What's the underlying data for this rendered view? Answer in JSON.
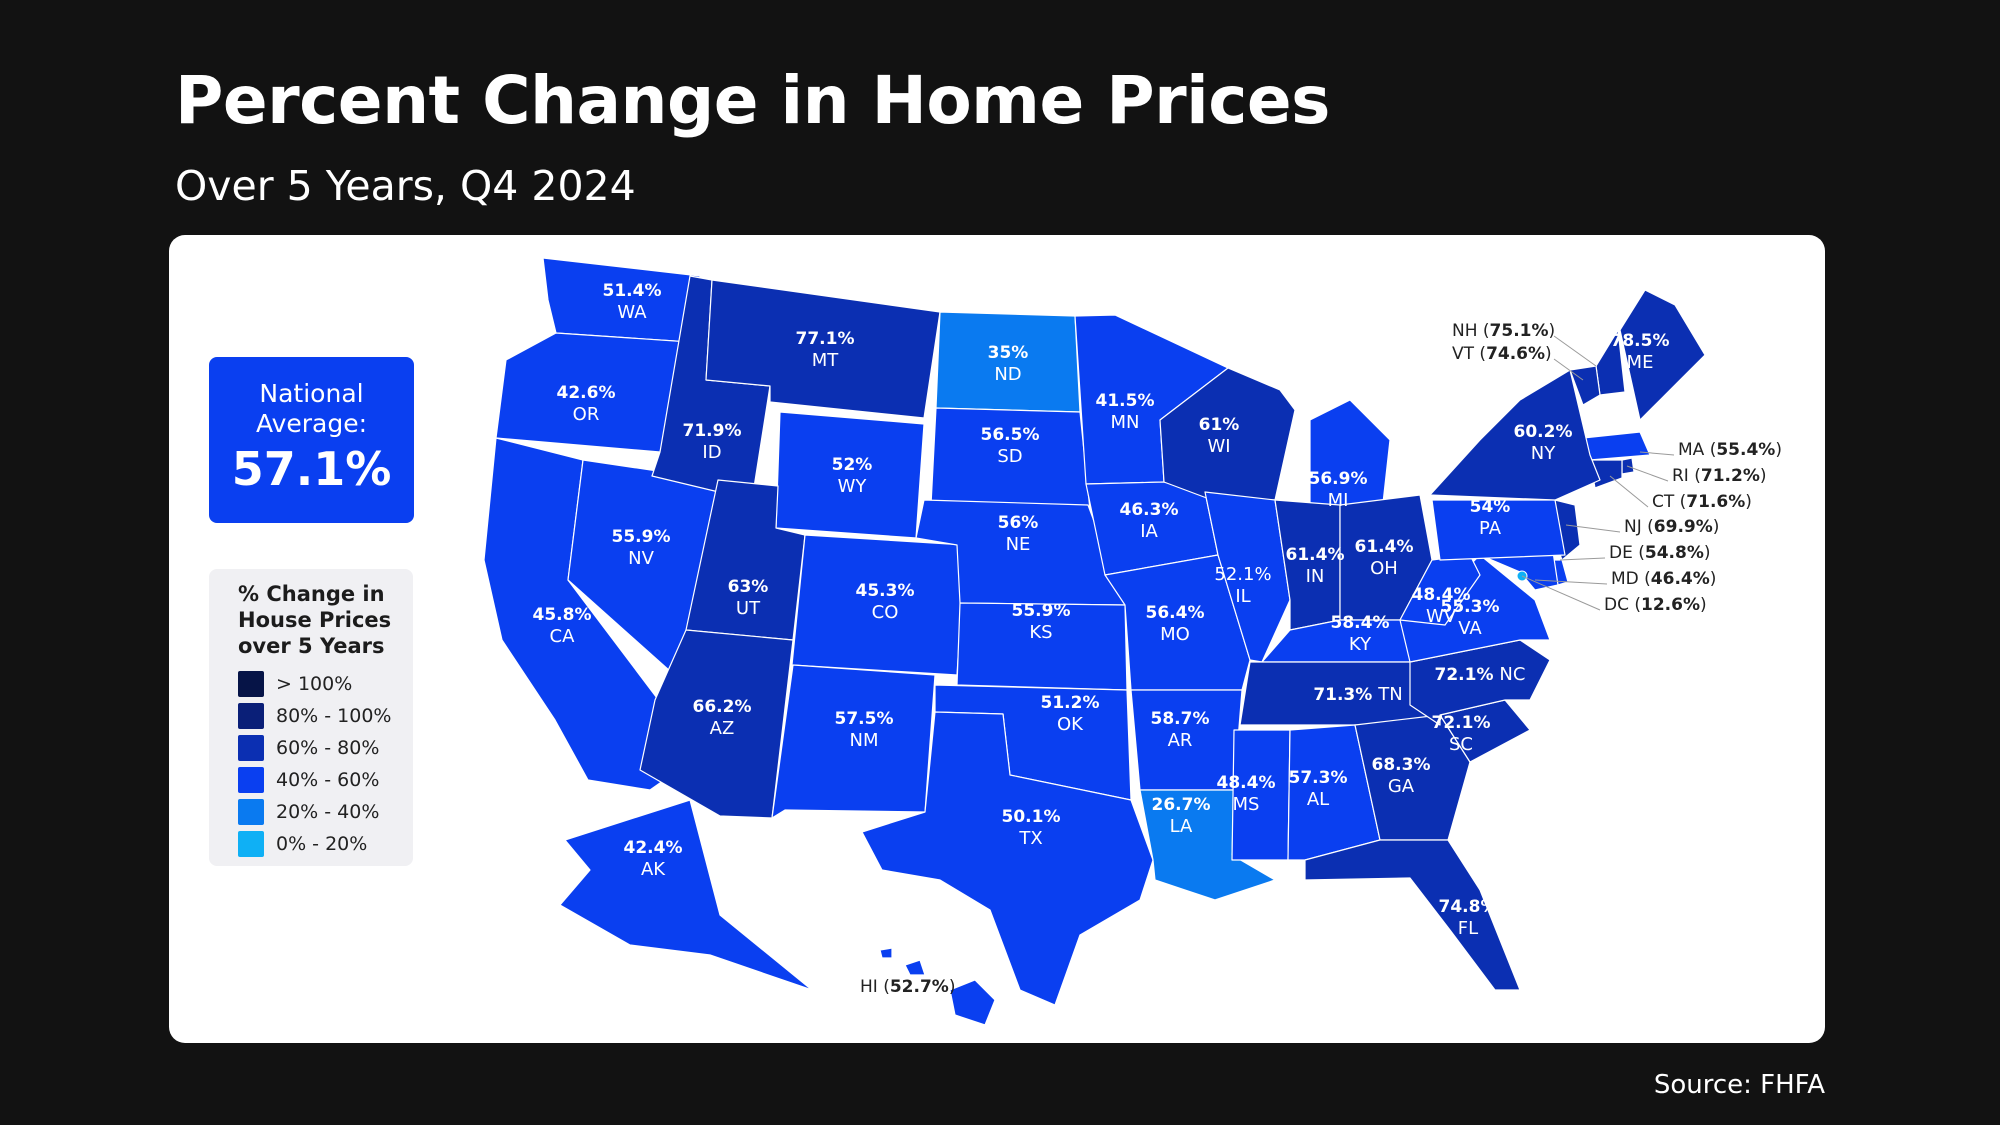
{
  "header": {
    "title": "Percent Change in Home Prices",
    "subtitle": "Over 5 Years, Q4 2024"
  },
  "national": {
    "label": "National\nAverage:",
    "value": "57.1%"
  },
  "legend": {
    "title": "% Change in\nHouse Prices\nover 5 Years",
    "items": [
      {
        "label": "> 100%",
        "color": "#061447"
      },
      {
        "label": "80% - 100%",
        "color": "#0a1f78"
      },
      {
        "label": "60% - 80%",
        "color": "#0b2fb2"
      },
      {
        "label": "40% - 60%",
        "color": "#0a3ff0"
      },
      {
        "label": "20% - 40%",
        "color": "#0a7af0"
      },
      {
        "label": "0% - 20%",
        "color": "#0fb0f5"
      }
    ]
  },
  "source": "Source: FHFA",
  "states": [
    {
      "code": "WA",
      "value": "51.4%",
      "pct": 51.4
    },
    {
      "code": "OR",
      "value": "42.6%",
      "pct": 42.6
    },
    {
      "code": "CA",
      "value": "45.8%",
      "pct": 45.8
    },
    {
      "code": "NV",
      "value": "55.9%",
      "pct": 55.9
    },
    {
      "code": "ID",
      "value": "71.9%",
      "pct": 71.9
    },
    {
      "code": "MT",
      "value": "77.1%",
      "pct": 77.1
    },
    {
      "code": "WY",
      "value": "52%",
      "pct": 52
    },
    {
      "code": "UT",
      "value": "63%",
      "pct": 63
    },
    {
      "code": "AZ",
      "value": "66.2%",
      "pct": 66.2
    },
    {
      "code": "CO",
      "value": "45.3%",
      "pct": 45.3
    },
    {
      "code": "NM",
      "value": "57.5%",
      "pct": 57.5
    },
    {
      "code": "ND",
      "value": "35%",
      "pct": 35
    },
    {
      "code": "SD",
      "value": "56.5%",
      "pct": 56.5
    },
    {
      "code": "NE",
      "value": "56%",
      "pct": 56
    },
    {
      "code": "KS",
      "value": "55.9%",
      "pct": 55.9
    },
    {
      "code": "OK",
      "value": "51.2%",
      "pct": 51.2
    },
    {
      "code": "TX",
      "value": "50.1%",
      "pct": 50.1
    },
    {
      "code": "MN",
      "value": "41.5%",
      "pct": 41.5
    },
    {
      "code": "IA",
      "value": "46.3%",
      "pct": 46.3
    },
    {
      "code": "MO",
      "value": "56.4%",
      "pct": 56.4
    },
    {
      "code": "AR",
      "value": "58.7%",
      "pct": 58.7
    },
    {
      "code": "LA",
      "value": "26.7%",
      "pct": 26.7
    },
    {
      "code": "WI",
      "value": "61%",
      "pct": 61
    },
    {
      "code": "IL",
      "value": "52.1%",
      "pct": 52.1
    },
    {
      "code": "MI",
      "value": "56.9%",
      "pct": 56.9
    },
    {
      "code": "IN",
      "value": "61.4%",
      "pct": 61.4
    },
    {
      "code": "OH",
      "value": "61.4%",
      "pct": 61.4
    },
    {
      "code": "KY",
      "value": "58.4%",
      "pct": 58.4
    },
    {
      "code": "TN",
      "value": "71.3%",
      "pct": 71.3
    },
    {
      "code": "MS",
      "value": "48.4%",
      "pct": 48.4
    },
    {
      "code": "AL",
      "value": "57.3%",
      "pct": 57.3
    },
    {
      "code": "GA",
      "value": "68.3%",
      "pct": 68.3
    },
    {
      "code": "FL",
      "value": "74.8%",
      "pct": 74.8
    },
    {
      "code": "SC",
      "value": "72.1%",
      "pct": 72.1
    },
    {
      "code": "NC",
      "value": "72.1%",
      "pct": 72.1
    },
    {
      "code": "VA",
      "value": "55.3%",
      "pct": 55.3
    },
    {
      "code": "WV",
      "value": "48.4%",
      "pct": 48.4
    },
    {
      "code": "PA",
      "value": "54%",
      "pct": 54
    },
    {
      "code": "NY",
      "value": "60.2%",
      "pct": 60.2
    },
    {
      "code": "ME",
      "value": "78.5%",
      "pct": 78.5
    },
    {
      "code": "AK",
      "value": "42.4%",
      "pct": 42.4
    }
  ],
  "callouts": [
    {
      "code": "NH",
      "value": "75.1%",
      "pct": 75.1
    },
    {
      "code": "VT",
      "value": "74.6%",
      "pct": 74.6
    },
    {
      "code": "MA",
      "value": "55.4%",
      "pct": 55.4
    },
    {
      "code": "RI",
      "value": "71.2%",
      "pct": 71.2
    },
    {
      "code": "CT",
      "value": "71.6%",
      "pct": 71.6
    },
    {
      "code": "NJ",
      "value": "69.9%",
      "pct": 69.9
    },
    {
      "code": "DE",
      "value": "54.8%",
      "pct": 54.8
    },
    {
      "code": "MD",
      "value": "46.4%",
      "pct": 46.4
    },
    {
      "code": "DC",
      "value": "12.6%",
      "pct": 12.6
    },
    {
      "code": "HI",
      "value": "52.7%",
      "pct": 52.7
    }
  ]
}
